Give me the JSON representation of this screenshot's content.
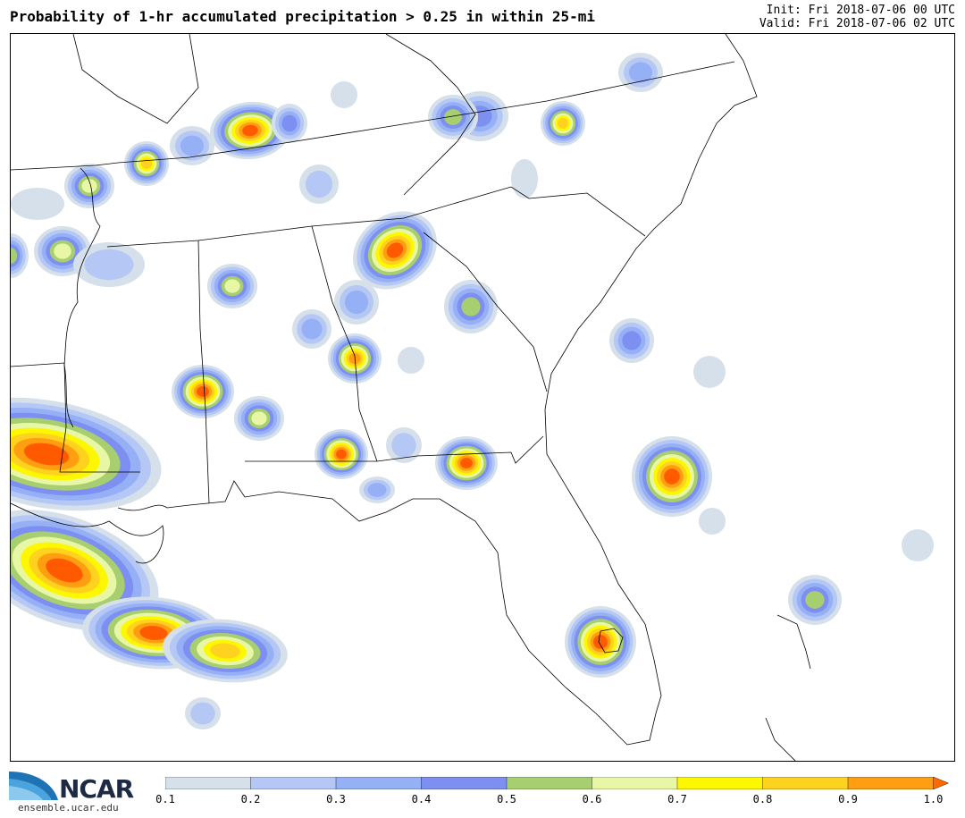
{
  "header": {
    "title": "Probability of 1-hr accumulated precipitation > 0.25 in within 25-mi",
    "init": "Init: Fri 2018-07-06 00 UTC",
    "valid": "Valid: Fri 2018-07-06 02 UTC"
  },
  "colorbar": {
    "ticks": [
      "0.1",
      "0.2",
      "0.3",
      "0.4",
      "0.5",
      "0.6",
      "0.7",
      "0.8",
      "0.9",
      "1.0"
    ],
    "colors": [
      "#d5e0ea",
      "#b5c8f5",
      "#96b0f5",
      "#7d8ff0",
      "#a8cf6f",
      "#e8f7a6",
      "#fdf700",
      "#ffd21f",
      "#ff9e10"
    ],
    "arrow_color": "#ff6a00"
  },
  "levels_colors": [
    "#d5e0ea",
    "#b5c8f5",
    "#96b0f5",
    "#7d8ff0",
    "#a8cf6f",
    "#e8f7a6",
    "#fdf700",
    "#ffd21f",
    "#ff9e10",
    "#ff5a00"
  ],
  "logo": {
    "name": "NCAR",
    "url": "ensemble.ucar.edu"
  }
}
